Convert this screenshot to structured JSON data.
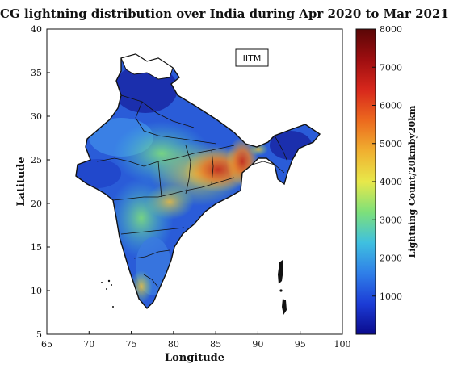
{
  "title": "CG lightning distribution over India during Apr 2020 to Mar 2021",
  "annotation": "IITM",
  "map": {
    "xlabel": "Longitude",
    "ylabel": "Latitude",
    "xlim": [
      65,
      100
    ],
    "ylim": [
      5,
      40
    ],
    "xticks": [
      65,
      70,
      75,
      80,
      85,
      90,
      95,
      100
    ],
    "yticks": [
      5,
      10,
      15,
      20,
      25,
      30,
      35,
      40
    ]
  },
  "colorbar": {
    "label": "Lightning Count/20kmby20km",
    "range": [
      0,
      8000
    ],
    "ticks": [
      1000,
      2000,
      3000,
      4000,
      5000,
      6000,
      7000,
      8000
    ],
    "colors": [
      "#0a0a8c",
      "#1c3cd6",
      "#2f7fe8",
      "#3fc0e0",
      "#7de07a",
      "#e8e84a",
      "#f0b030",
      "#ec6a1e",
      "#d8281c",
      "#9e0e10",
      "#5a0606"
    ]
  }
}
